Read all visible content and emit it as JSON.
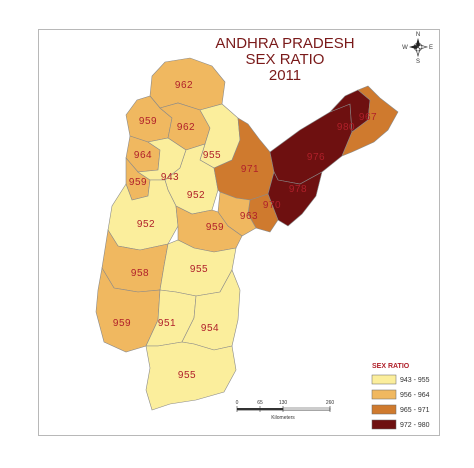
{
  "title": {
    "line1": "ANDHRA PRADESH",
    "line2": "SEX RATIO",
    "line3": "2011"
  },
  "colors": {
    "class1": "#fbee9c",
    "class2": "#f0b860",
    "class3": "#cf7a2e",
    "class4": "#6e1010",
    "border": "#8a8a8a"
  },
  "districts": [
    {
      "label": "962",
      "class": 2
    },
    {
      "label": "959",
      "class": 2
    },
    {
      "label": "962",
      "class": 2
    },
    {
      "label": "964",
      "class": 2
    },
    {
      "label": "955",
      "class": 1
    },
    {
      "label": "959",
      "class": 2
    },
    {
      "label": "943",
      "class": 1
    },
    {
      "label": "952",
      "class": 1
    },
    {
      "label": "971",
      "class": 3
    },
    {
      "label": "976",
      "class": 4
    },
    {
      "label": "978",
      "class": 4
    },
    {
      "label": "980",
      "class": 4
    },
    {
      "label": "967",
      "class": 3
    },
    {
      "label": "970",
      "class": 3
    },
    {
      "label": "963",
      "class": 2
    },
    {
      "label": "952",
      "class": 1
    },
    {
      "label": "959",
      "class": 2
    },
    {
      "label": "958",
      "class": 2
    },
    {
      "label": "955",
      "class": 1
    },
    {
      "label": "959",
      "class": 2
    },
    {
      "label": "951",
      "class": 1
    },
    {
      "label": "954",
      "class": 1
    },
    {
      "label": "955",
      "class": 1
    }
  ],
  "legend": {
    "title": "SEX RATIO",
    "items": [
      {
        "label": "943 - 955",
        "color": "#fbee9c"
      },
      {
        "label": "956 - 964",
        "color": "#f0b860"
      },
      {
        "label": "965 - 971",
        "color": "#cf7a2e"
      },
      {
        "label": "972 - 980",
        "color": "#6e1010"
      }
    ]
  },
  "scale_bar": {
    "ticks": [
      "0",
      "65",
      "130",
      "260"
    ],
    "unit": "Kilometers"
  },
  "compass": {
    "n": "N",
    "s": "S",
    "e": "E",
    "w": "W"
  }
}
